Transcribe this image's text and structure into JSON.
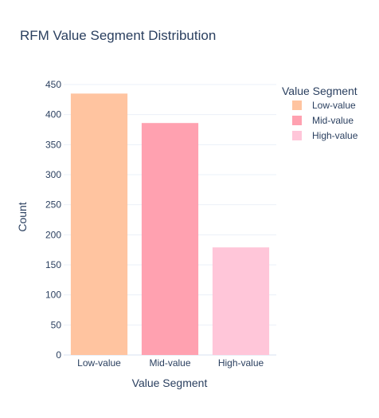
{
  "chart_data": {
    "type": "bar",
    "title": "RFM Value Segment Distribution",
    "xlabel": "Value Segment",
    "ylabel": "Count",
    "categories": [
      "Low-value",
      "Mid-value",
      "High-value"
    ],
    "values": [
      435,
      386,
      179
    ],
    "colors": [
      "#ffc4a0",
      "#ffa1b0",
      "#ffc6d9"
    ],
    "ylim": [
      0,
      450
    ],
    "yticks": [
      0,
      50,
      100,
      150,
      200,
      250,
      300,
      350,
      400,
      450
    ],
    "grid": true,
    "legend": {
      "title": "Value Segment",
      "placement": "top-right",
      "entries": [
        "Low-value",
        "Mid-value",
        "High-value"
      ]
    }
  }
}
